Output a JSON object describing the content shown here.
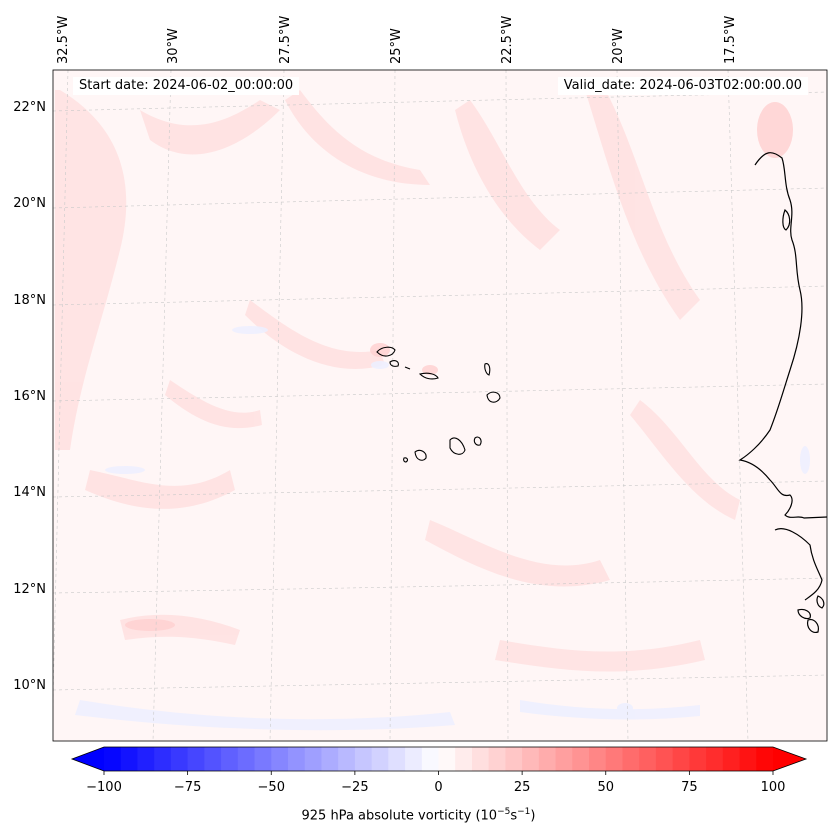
{
  "map": {
    "start_date": "Start date: 2024-06-02_00:00:00",
    "valid_date": "Valid_date: 2024-06-03T02:00:00.00",
    "lon_labels": [
      "32.5°W",
      "30°W",
      "27.5°W",
      "25°W",
      "22.5°W",
      "20°W",
      "17.5°W"
    ],
    "lat_labels": [
      "22°N",
      "20°N",
      "18°N",
      "16°N",
      "14°N",
      "12°N",
      "10°N"
    ]
  },
  "colorbar": {
    "label": "925 hPa absolute vorticity (10",
    "label_exp1": "−5",
    "label_mid": "s",
    "label_exp2": "−1",
    "label_end": ")",
    "ticks": [
      "−100",
      "−75",
      "−50",
      "−25",
      "0",
      "25",
      "50",
      "75",
      "100"
    ],
    "min": -100,
    "max": 100,
    "step": 5,
    "colors": {
      "negative": "#0000ff",
      "zero": "#ffffff",
      "positive": "#ff0000"
    }
  }
}
